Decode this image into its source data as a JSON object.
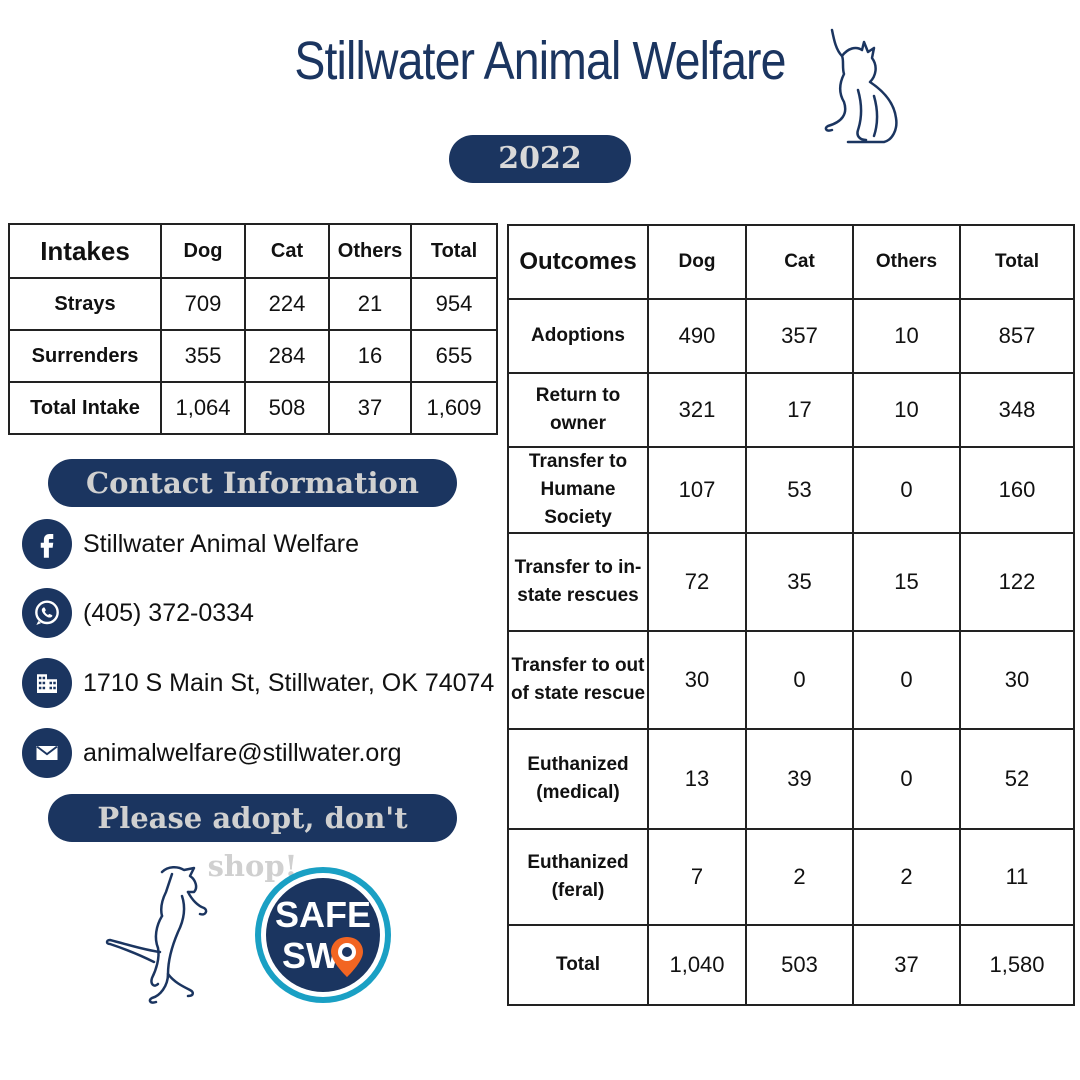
{
  "header": {
    "title": "Stillwater Animal Welfare",
    "year": "2022"
  },
  "intakes": {
    "heading": "Intakes",
    "columns": [
      "Dog",
      "Cat",
      "Others",
      "Total"
    ],
    "rows": [
      {
        "label": "Strays",
        "values": [
          "709",
          "224",
          "21",
          "954"
        ]
      },
      {
        "label": "Surrenders",
        "values": [
          "355",
          "284",
          "16",
          "655"
        ]
      },
      {
        "label": "Total Intake",
        "values": [
          "1,064",
          "508",
          "37",
          "1,609"
        ]
      }
    ]
  },
  "outcomes": {
    "heading": "Outcomes",
    "columns": [
      "Dog",
      "Cat",
      "Others",
      "Total"
    ],
    "rows": [
      {
        "label": "Adoptions",
        "values": [
          "490",
          "357",
          "10",
          "857"
        ]
      },
      {
        "label": "Return to owner",
        "values": [
          "321",
          "17",
          "10",
          "348"
        ]
      },
      {
        "label": "Transfer to Humane Society",
        "values": [
          "107",
          "53",
          "0",
          "160"
        ]
      },
      {
        "label": "Transfer to in-state rescues",
        "values": [
          "72",
          "35",
          "15",
          "122"
        ]
      },
      {
        "label": "Transfer to out of state rescue",
        "values": [
          "30",
          "0",
          "0",
          "30"
        ]
      },
      {
        "label": "Euthanized (medical)",
        "values": [
          "13",
          "39",
          "0",
          "52"
        ]
      },
      {
        "label": "Euthanized (feral)",
        "values": [
          "7",
          "2",
          "2",
          "11"
        ]
      },
      {
        "label": "Total",
        "values": [
          "1,040",
          "503",
          "37",
          "1,580"
        ]
      }
    ]
  },
  "contact": {
    "heading": "Contact Information",
    "facebook": "Stillwater Animal Welfare",
    "phone": "(405) 372-0334",
    "address": "1710 S Main St, Stillwater, OK 74074",
    "email": "animalwelfare@stillwater.org",
    "icons": [
      "facebook-icon",
      "whatsapp-icon",
      "building-icon",
      "mail-icon"
    ]
  },
  "slogan": "Please adopt, don't shop!",
  "badge": {
    "line1": "SAFE",
    "line2": "SW"
  },
  "colors": {
    "navy": "#1b3560",
    "pill_text": "#d0d0d0",
    "badge_ring": "#1aa0c4",
    "badge_pin": "#f26522"
  }
}
